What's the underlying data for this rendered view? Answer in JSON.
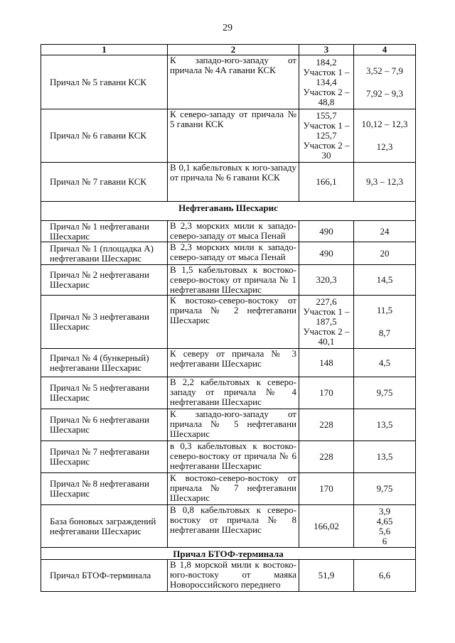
{
  "page_number": "29",
  "table": {
    "header": [
      "1",
      "2",
      "3",
      "4"
    ],
    "rows": [
      {
        "cells": [
          [
            "Причал № 5 гавани КСК"
          ],
          [
            "К западо-юго-западу от причала № 4А гавани КСК"
          ],
          [
            "184,2",
            "Участок 1 – 134,4",
            "Участок 2 – 48,8"
          ],
          [
            "3,52 – 7,9",
            "7,92 – 9,3"
          ]
        ]
      },
      {
        "cells": [
          [
            "Причал № 6 гавани КСК"
          ],
          [
            "К северо-западу от причала № 5 гавани КСК"
          ],
          [
            "155,7",
            "Участок 1 – 125,7",
            "Участок 2 – 30"
          ],
          [
            "10,12 – 12,3",
            "12,3"
          ]
        ]
      },
      {
        "cells": [
          [
            "Причал № 7 гавани КСК"
          ],
          [
            "В 0,1 кабельтовых к юго-западу от причала № 6 гавани КСК"
          ],
          [
            "166,1"
          ],
          [
            "9,3 – 12,3"
          ]
        ]
      },
      {
        "section": "Нефтегавань Шесхарис"
      },
      {
        "cells": [
          [
            "Причал № 1 нефтегавани Шесхарис"
          ],
          [
            "В 2,3 морских мили к западо-северо-западу от мыса Пенай"
          ],
          [
            "490"
          ],
          [
            "24"
          ]
        ]
      },
      {
        "cells": [
          [
            "Причал № 1 (площадка А) нефтегавани Шесхарис"
          ],
          [
            "В 2,3 морских мили к западо-северо-западу от мыса Пенай"
          ],
          [
            "490"
          ],
          [
            "20"
          ]
        ]
      },
      {
        "cells": [
          [
            "Причал № 2 нефтегавани Шесхарис"
          ],
          [
            "В 1,5 кабельтовых к востоко-северо-востоку от причала № 1 нефтегавани Шесхарис"
          ],
          [
            "320,3"
          ],
          [
            "14,5"
          ]
        ]
      },
      {
        "cells": [
          [
            "Причал № 3 нефтегавани Шесхарис"
          ],
          [
            "К востоко-северо-востоку от причала № 2 нефтегавани Шесхарис"
          ],
          [
            "227,6",
            "Участок 1 – 187,5",
            "Участок 2 – 40,1"
          ],
          [
            "11,5",
            "8,7"
          ]
        ]
      },
      {
        "cells": [
          [
            "Причал № 4 (бункерный) нефтегавани Шесхарис"
          ],
          [
            "К северу от причала № 3 нефтегавани Шесхарис"
          ],
          [
            "148"
          ],
          [
            "4,5"
          ]
        ]
      },
      {
        "cells": [
          [
            "Причал № 5 нефтегавани Шесхарис"
          ],
          [
            "В 2,2 кабельтовых к северо-западу от причала № 4 нефтегавани Шесхарис"
          ],
          [
            "170"
          ],
          [
            "9,75"
          ]
        ]
      },
      {
        "cells": [
          [
            "Причал № 6 нефтегавани Шесхарис"
          ],
          [
            "К западо-юго-западу от причала № 5 нефтегавани Шесхарис"
          ],
          [
            "228"
          ],
          [
            "13,5"
          ]
        ]
      },
      {
        "cells": [
          [
            "Причал № 7 нефтегавани Шесхарис"
          ],
          [
            "в 0,3 кабельтовых к востоко-северо-востоку от причала № 6 нефтегавани Шесхарис"
          ],
          [
            "228"
          ],
          [
            "13,5"
          ]
        ]
      },
      {
        "cells": [
          [
            "Причал № 8 нефтегавани Шесхарис"
          ],
          [
            "К востоко-северо-востоку от причала № 7 нефтегавани Шесхарис"
          ],
          [
            "170"
          ],
          [
            "9,75"
          ]
        ]
      },
      {
        "cells": [
          [
            "База боновых заграждений нефтегавани Шесхарис"
          ],
          [
            "В 0,8 кабельтовых к северо-востоку от причала № 8 нефтегавани Шесхарис"
          ],
          [
            "166,02"
          ],
          [
            "3,9",
            "4,65",
            "5,6",
            "6"
          ]
        ]
      },
      {
        "section": "Причал БТОФ-терминала"
      },
      {
        "cells": [
          [
            "Причал БТОФ-терминала"
          ],
          [
            "В 1,8 морской мили к востоко-юго-востоку от маяка Новороссийского переднего"
          ],
          [
            "51,9"
          ],
          [
            "6,6"
          ]
        ]
      }
    ]
  }
}
